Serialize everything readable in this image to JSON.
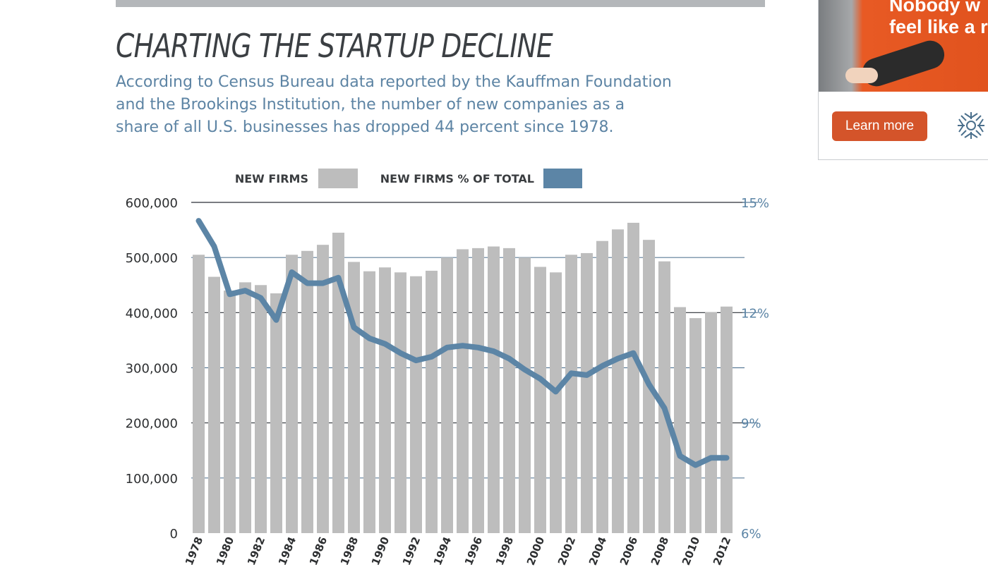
{
  "article": {
    "title": "CHARTING THE STARTUP DECLINE",
    "subtitle_lines": [
      "According to Census Bureau data reported by the Kauffman Foundation",
      "and the Brookings Institution, the number of new companies as a",
      "share of all U.S. businesses has dropped 44 percent since 1978."
    ]
  },
  "ad": {
    "headline_lines": [
      "Nobody w",
      "feel like a r"
    ],
    "button_label": "Learn more",
    "logo_icon": "starburst-logo-icon"
  },
  "colors": {
    "bar": "#bdbdbd",
    "line": "#5c85a6",
    "right_axis_text": "#5c85a6",
    "left_axis_text": "#2d2f31",
    "grid_major": "#2a2f36",
    "grid_minor": "#5b7c99",
    "button": "#d4542a"
  },
  "chart_data": {
    "type": "bar+line",
    "title": "",
    "legend": {
      "placement": "top-center",
      "items": [
        "NEW FIRMS",
        "NEW FIRMS % OF TOTAL"
      ]
    },
    "x": [
      1978,
      1979,
      1980,
      1981,
      1982,
      1983,
      1984,
      1985,
      1986,
      1987,
      1988,
      1989,
      1990,
      1991,
      1992,
      1993,
      1994,
      1995,
      1996,
      1997,
      1998,
      1999,
      2000,
      2001,
      2002,
      2003,
      2004,
      2005,
      2006,
      2007,
      2008,
      2009,
      2010,
      2011,
      2012
    ],
    "x_tick_labels": [
      "1978",
      "1980",
      "1982",
      "1984",
      "1986",
      "1988",
      "1990",
      "1992",
      "1994",
      "1996",
      "1998",
      "2000",
      "2002",
      "2004",
      "2006",
      "2008",
      "2010",
      "2012"
    ],
    "series": [
      {
        "name": "NEW FIRMS",
        "kind": "bar",
        "axis": "left",
        "values": [
          505000,
          465000,
          440000,
          455000,
          450000,
          435000,
          505000,
          512000,
          523000,
          545000,
          492000,
          475000,
          482000,
          473000,
          466000,
          476000,
          500000,
          515000,
          517000,
          520000,
          517000,
          500000,
          483000,
          473000,
          505000,
          508000,
          530000,
          551000,
          563000,
          532000,
          493000,
          410000,
          390000,
          401000,
          411000
        ]
      },
      {
        "name": "NEW FIRMS % OF TOTAL",
        "kind": "line",
        "axis": "right",
        "values": [
          14.5,
          13.8,
          12.5,
          12.6,
          12.4,
          11.8,
          13.1,
          12.8,
          12.8,
          12.95,
          11.6,
          11.3,
          11.15,
          10.9,
          10.7,
          10.8,
          11.05,
          11.1,
          11.05,
          10.95,
          10.75,
          10.45,
          10.2,
          9.85,
          10.35,
          10.3,
          10.55,
          10.75,
          10.9,
          10.05,
          9.4,
          8.1,
          7.85,
          8.05,
          8.05
        ]
      }
    ],
    "y_left": {
      "min": 0,
      "max": 600000,
      "ticks": [
        0,
        100000,
        200000,
        300000,
        400000,
        500000,
        600000
      ],
      "tick_labels": [
        "0",
        "100,000",
        "200,000",
        "300,000",
        "400,000",
        "500,000",
        "600,000"
      ]
    },
    "y_right": {
      "min": 6,
      "max": 15,
      "ticks": [
        6,
        9,
        12,
        15
      ],
      "tick_labels": [
        "6%",
        "9%",
        "12%",
        "15%"
      ]
    },
    "grid": true
  }
}
